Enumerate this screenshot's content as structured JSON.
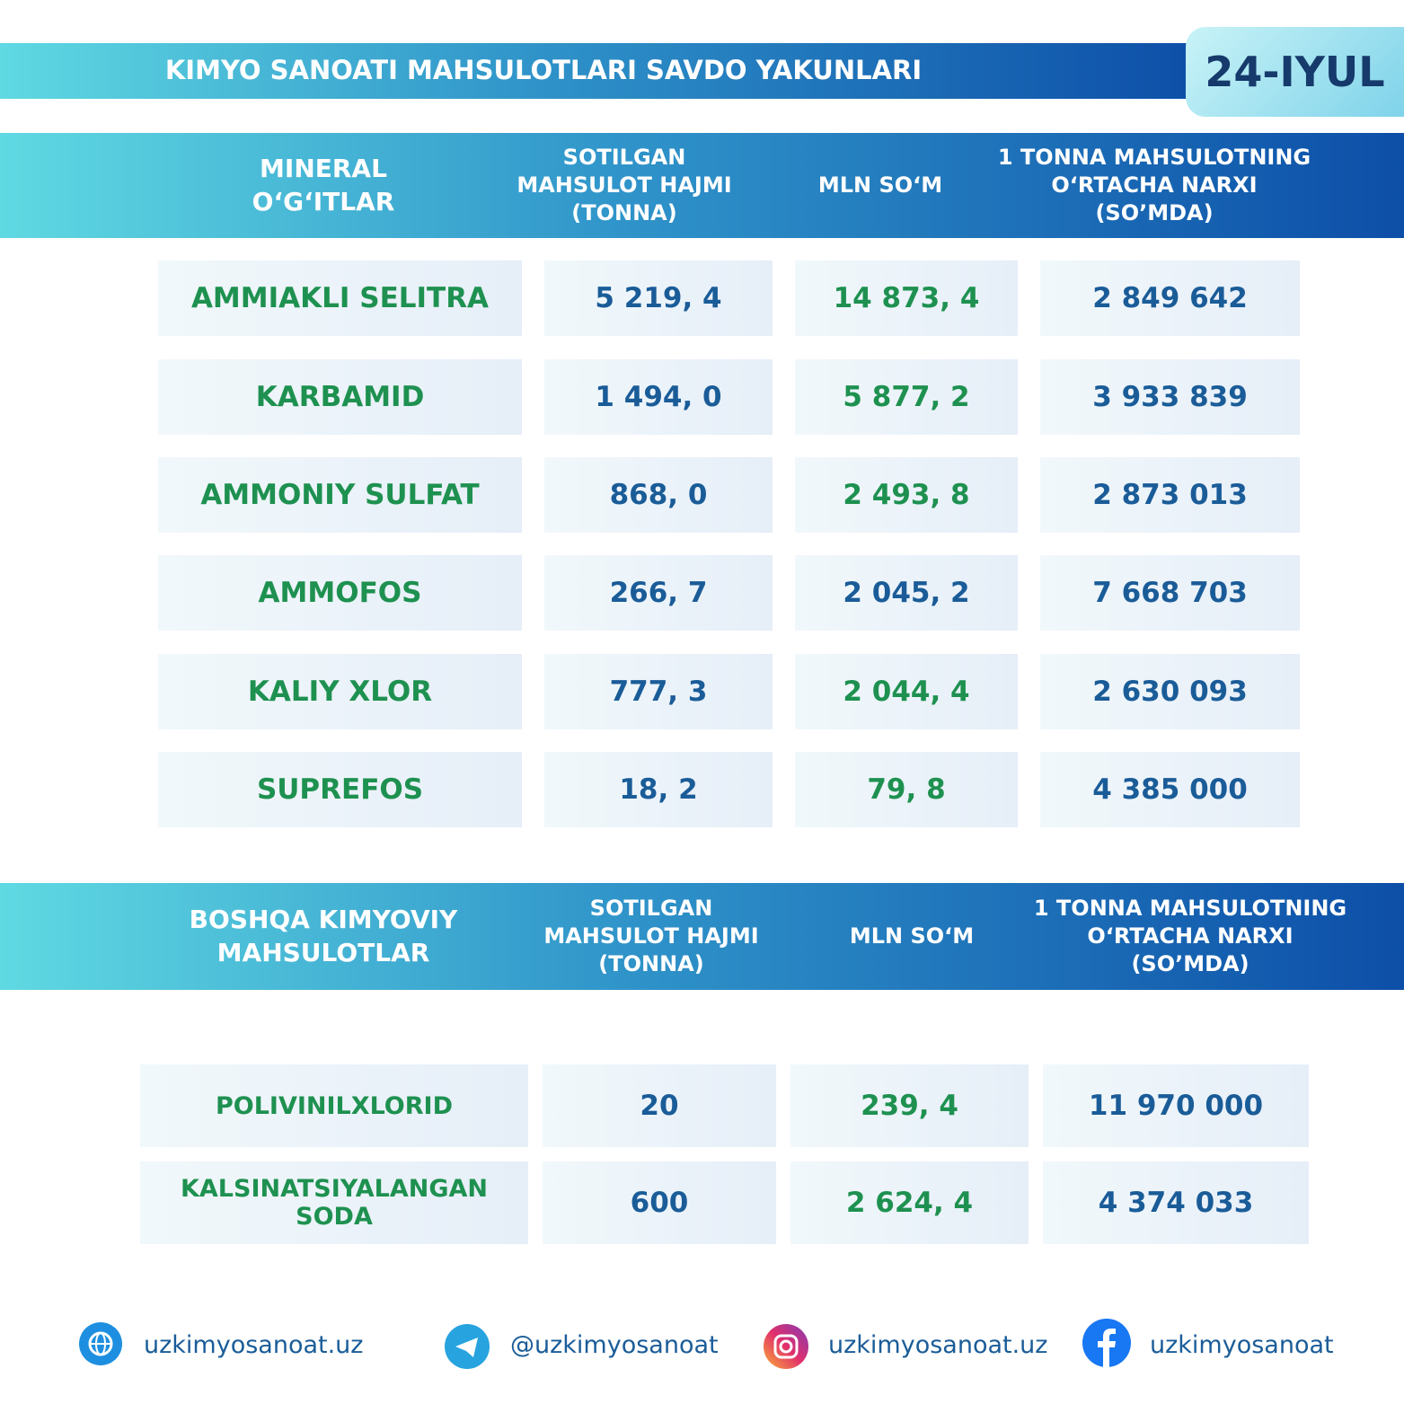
{
  "header": {
    "title": "KIMYO SANOATI MAHSULOTLARI SAVDO YAKUNLARI",
    "date": "24-IYUL"
  },
  "tables": [
    {
      "columns": [
        "MINERAL O‘G‘ITLAR",
        "SOTILGAN MAHSULOT HAJMI (TONNA)",
        "MLN SO‘M",
        "1 TONNA MAHSULOTNING O‘RTACHA NARXI (SO’MDA)"
      ],
      "rows": [
        [
          "AMMIAKLI SELITRA",
          "5 219, 4",
          "14 873, 4",
          "2 849 642"
        ],
        [
          "KARBAMID",
          "1 494, 0",
          "5 877, 2",
          "3 933 839"
        ],
        [
          "AMMONIY SULFAT",
          "868, 0",
          "2 493, 8",
          "2 873 013"
        ],
        [
          "AMMOFOS",
          "266, 7",
          "2 045, 2",
          "7 668 703"
        ],
        [
          "KALIY XLOR",
          "777, 3",
          "2 044, 4",
          "2 630 093"
        ],
        [
          "SUPREFOS",
          "18, 2",
          "79, 8",
          "4 385 000"
        ]
      ],
      "mln_colors": [
        "#1e9150",
        "#1e9150",
        "#1e9150",
        "#1a5c98",
        "#1e9150",
        "#1e9150"
      ]
    },
    {
      "columns": [
        "BOSHQA KIMYOVIY MAHSULOTLAR",
        "SOTILGAN MAHSULOT HAJMI (TONNA)",
        "MLN SO‘M",
        "1 TONNA MAHSULOTNING O‘RTACHA NARXI (SO’MDA)"
      ],
      "rows": [
        [
          "POLIVINILXLORID",
          "20",
          "239, 4",
          "11 970 000"
        ],
        [
          "KALSINATSIYALANGAN SODA",
          "600",
          "2 624, 4",
          "4 374 033"
        ]
      ],
      "mln_colors": [
        "#1e9150",
        "#1e9150"
      ]
    }
  ],
  "footer": {
    "links": [
      "uzkimyosanoat.uz",
      "@uzkimyosanoat",
      "uzkimyosanoat.uz",
      "uzkimyosanoat"
    ]
  }
}
